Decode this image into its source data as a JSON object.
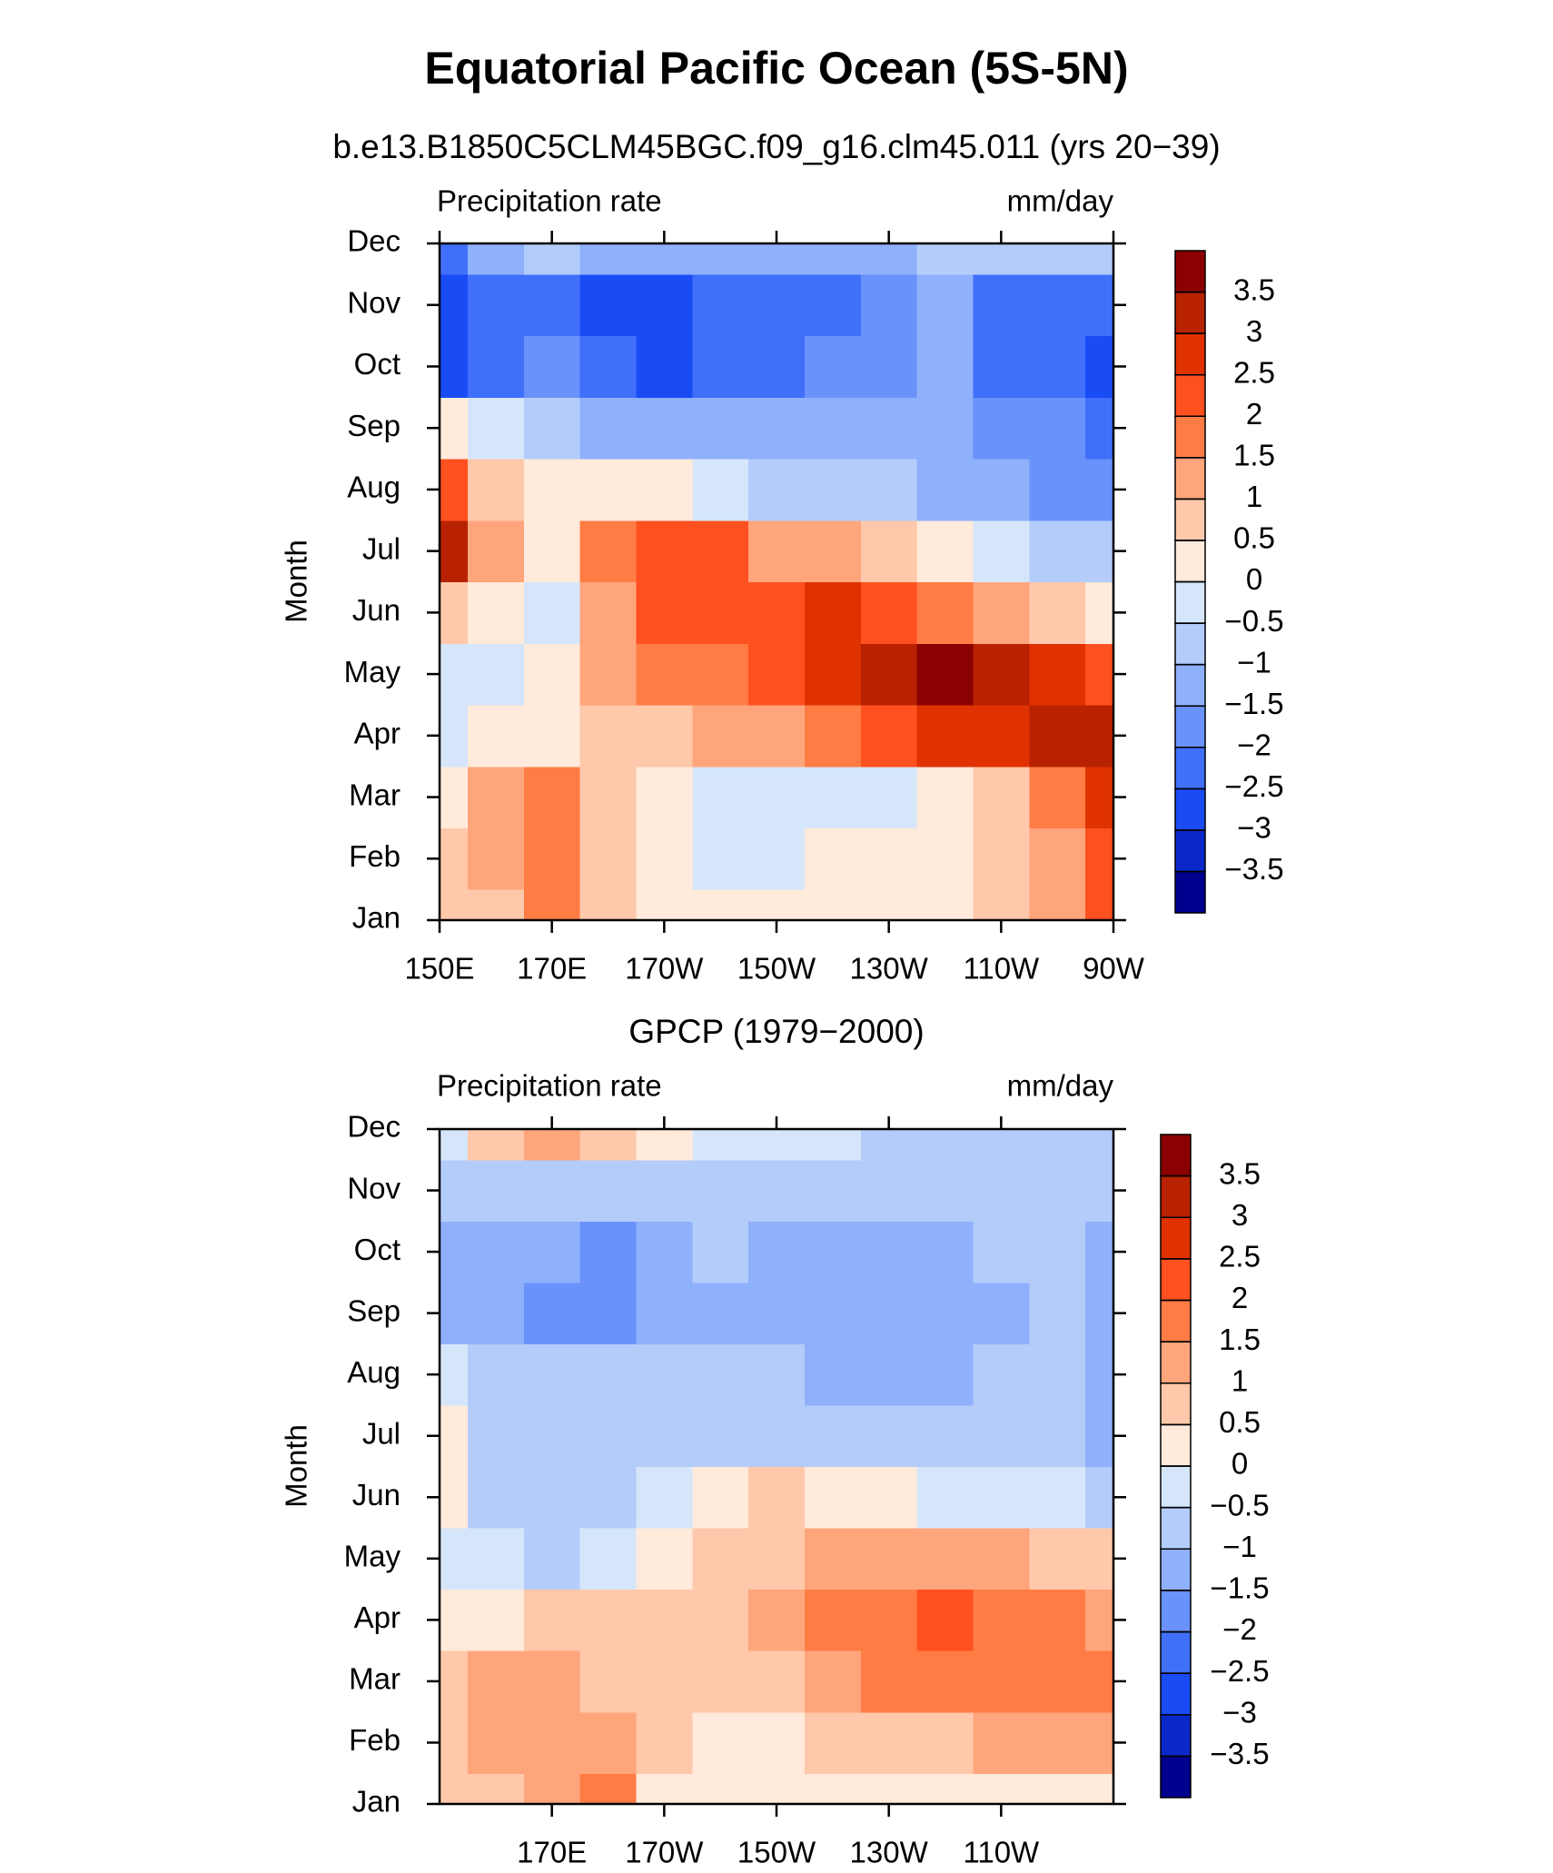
{
  "title": "Equatorial Pacific Ocean (5S-5N)",
  "chart_data": [
    {
      "type": "contour",
      "subtitle": "b.e13.B1850C5CLM45BGC.f09_g16.clm45.011 (yrs 20−39)",
      "label_left": "Precipitation rate",
      "label_right": "mm/day",
      "ylabel": "Month",
      "y": [
        "Jan",
        "Feb",
        "Mar",
        "Apr",
        "May",
        "Jun",
        "Jul",
        "Aug",
        "Sep",
        "Oct",
        "Nov",
        "Dec"
      ],
      "x": [
        150,
        160,
        170,
        180,
        190,
        200,
        210,
        220,
        230,
        240,
        250,
        260,
        270
      ],
      "xlim": [
        150,
        270
      ],
      "xticks": [
        {
          "value": 150,
          "label": "150E"
        },
        {
          "value": 170,
          "label": "170E"
        },
        {
          "value": 190,
          "label": "170W"
        },
        {
          "value": 210,
          "label": "150W"
        },
        {
          "value": 230,
          "label": "130W"
        },
        {
          "value": 250,
          "label": "110W"
        },
        {
          "value": 270,
          "label": "90W"
        }
      ],
      "z": [
        [
          0.7,
          0.8,
          1.7,
          0.7,
          0.3,
          0.2,
          0.2,
          0.2,
          0.3,
          0.4,
          0.8,
          1.3,
          2.2
        ],
        [
          0.8,
          1.2,
          1.7,
          0.8,
          0.3,
          -0.2,
          -0.1,
          0.2,
          0.3,
          0.4,
          0.8,
          1.4,
          2.3
        ],
        [
          0.3,
          1.0,
          1.8,
          0.8,
          0.4,
          -0.2,
          -0.2,
          -0.2,
          -0.2,
          0.2,
          0.9,
          1.8,
          2.6
        ],
        [
          -0.2,
          0.3,
          0.2,
          0.6,
          0.8,
          1.0,
          1.2,
          1.8,
          2.2,
          2.5,
          2.7,
          3.0,
          3.2
        ],
        [
          -0.3,
          -0.2,
          0.2,
          1.0,
          1.5,
          1.8,
          2.4,
          2.8,
          3.2,
          3.6,
          3.1,
          2.5,
          2.0
        ],
        [
          0.8,
          0.3,
          -0.2,
          1.2,
          2.0,
          2.2,
          2.4,
          2.5,
          2.0,
          1.5,
          1.0,
          0.6,
          0.2
        ],
        [
          3.2,
          1.2,
          0.4,
          1.6,
          2.2,
          2.1,
          1.4,
          1.0,
          0.6,
          0.3,
          -0.2,
          -0.6,
          -1.0
        ],
        [
          2.0,
          0.6,
          0.4,
          0.3,
          0.3,
          -0.2,
          -0.6,
          -0.8,
          -1.0,
          -1.2,
          -1.5,
          -1.7,
          -2.0
        ],
        [
          0.3,
          -0.4,
          -0.8,
          -1.2,
          -1.3,
          -1.4,
          -1.4,
          -1.5,
          -1.5,
          -1.5,
          -1.7,
          -1.9,
          -2.3
        ],
        [
          -3.0,
          -2.2,
          -1.8,
          -2.2,
          -2.6,
          -2.5,
          -2.2,
          -2.0,
          -1.6,
          -1.5,
          -2.1,
          -2.2,
          -2.6
        ],
        [
          -2.6,
          -2.2,
          -2.3,
          -2.6,
          -2.7,
          -2.4,
          -2.2,
          -2.1,
          -1.6,
          -1.4,
          -2.1,
          -2.2,
          -2.2
        ],
        [
          -2.1,
          -1.4,
          -0.8,
          -1.2,
          -1.4,
          -1.5,
          -1.5,
          -1.3,
          -1.2,
          -1.0,
          -0.8,
          -0.6,
          -0.8
        ]
      ],
      "colorbar_ticks": [
        {
          "value": -3.5,
          "label": "−3.5"
        },
        {
          "value": -3,
          "label": "−3"
        },
        {
          "value": -2.5,
          "label": "−2.5"
        },
        {
          "value": -2,
          "label": "−2"
        },
        {
          "value": -1.5,
          "label": "−1.5"
        },
        {
          "value": -1,
          "label": "−1"
        },
        {
          "value": -0.5,
          "label": "−0.5"
        },
        0,
        0.5,
        1,
        1.5,
        2,
        2.5,
        3,
        3.5
      ],
      "colors": [
        "#00008f",
        "#0a28c8",
        "#1a4cf5",
        "#4070fa",
        "#6a92fb",
        "#8fb0fb",
        "#b4ccfa",
        "#d6e6fa",
        "#ffeadb",
        "#ffc8aa",
        "#ffa57c",
        "#ff7c44",
        "#ff5020",
        "#e03200",
        "#b82200",
        "#8b0000"
      ]
    },
    {
      "type": "contour",
      "subtitle": "GPCP (1979−2000)",
      "label_left": "Precipitation rate",
      "label_right": "mm/day",
      "ylabel": "Month",
      "y": [
        "Jan",
        "Feb",
        "Mar",
        "Apr",
        "May",
        "Jun",
        "Jul",
        "Aug",
        "Sep",
        "Oct",
        "Nov",
        "Dec"
      ],
      "x": [
        150,
        160,
        170,
        180,
        190,
        200,
        210,
        220,
        230,
        240,
        250,
        260,
        270
      ],
      "xlim": [
        150,
        270
      ],
      "xticks": [
        {
          "value": 170,
          "label": "170E"
        },
        {
          "value": 190,
          "label": "170W"
        },
        {
          "value": 210,
          "label": "150W"
        },
        {
          "value": 230,
          "label": "130W"
        },
        {
          "value": 250,
          "label": "110W"
        }
      ],
      "z": [
        [
          0.6,
          0.6,
          1.2,
          1.6,
          0.4,
          0.2,
          0.2,
          0.2,
          0.2,
          0.2,
          0.2,
          0.2,
          0.3
        ],
        [
          0.6,
          1.0,
          1.2,
          1.0,
          0.6,
          0.3,
          0.4,
          0.5,
          0.6,
          0.8,
          1.0,
          1.2,
          1.4
        ],
        [
          0.6,
          1.0,
          1.1,
          0.8,
          0.6,
          0.6,
          0.9,
          1.2,
          1.5,
          1.7,
          1.6,
          1.9,
          1.6
        ],
        [
          0.2,
          0.4,
          0.6,
          0.7,
          0.6,
          0.8,
          1.3,
          1.6,
          1.8,
          2.0,
          1.8,
          1.9,
          1.4
        ],
        [
          -0.2,
          -0.5,
          -0.7,
          -0.4,
          0.2,
          0.6,
          0.9,
          1.0,
          1.1,
          1.1,
          1.0,
          0.8,
          0.6
        ],
        [
          0.2,
          -0.6,
          -0.7,
          -0.8,
          -0.4,
          0.3,
          0.6,
          0.4,
          0.2,
          -0.2,
          -0.3,
          -0.4,
          -0.6
        ],
        [
          0.2,
          -0.6,
          -0.8,
          -0.8,
          -0.7,
          -0.6,
          -0.6,
          -0.6,
          -0.7,
          -0.8,
          -0.8,
          -1.0,
          -1.2
        ],
        [
          -0.2,
          -0.8,
          -0.9,
          -1.0,
          -1.0,
          -0.9,
          -0.9,
          -1.1,
          -1.2,
          -1.1,
          -1.0,
          -1.0,
          -1.3
        ],
        [
          -1.3,
          -1.2,
          -1.8,
          -2.0,
          -1.3,
          -1.2,
          -1.2,
          -1.3,
          -1.3,
          -1.3,
          -1.1,
          -0.8,
          -1.3
        ],
        [
          -1.1,
          -1.1,
          -1.5,
          -1.7,
          -1.2,
          -1.0,
          -1.1,
          -1.2,
          -1.3,
          -1.2,
          -1.0,
          -0.8,
          -1.2
        ],
        [
          -0.8,
          -1.0,
          -1.0,
          -0.9,
          -0.8,
          -0.8,
          -0.8,
          -0.8,
          -0.8,
          -0.8,
          -0.8,
          -0.8,
          -0.8
        ],
        [
          -0.3,
          0.6,
          1.2,
          0.6,
          0.3,
          -0.4,
          -0.4,
          -0.5,
          -0.6,
          -0.7,
          -0.7,
          -0.7,
          -0.7
        ]
      ],
      "colorbar_ticks": [
        {
          "value": -3.5,
          "label": "−3.5"
        },
        {
          "value": -3,
          "label": "−3"
        },
        {
          "value": -2.5,
          "label": "−2.5"
        },
        {
          "value": -2,
          "label": "−2"
        },
        {
          "value": -1.5,
          "label": "−1.5"
        },
        {
          "value": -1,
          "label": "−1"
        },
        {
          "value": -0.5,
          "label": "−0.5"
        },
        0,
        0.5,
        1,
        1.5,
        2,
        2.5,
        3,
        3.5
      ],
      "colors": [
        "#00008f",
        "#0a28c8",
        "#1a4cf5",
        "#4070fa",
        "#6a92fb",
        "#8fb0fb",
        "#b4ccfa",
        "#d6e6fa",
        "#ffeadb",
        "#ffc8aa",
        "#ffa57c",
        "#ff7c44",
        "#ff5020",
        "#e03200",
        "#b82200",
        "#8b0000"
      ]
    }
  ]
}
